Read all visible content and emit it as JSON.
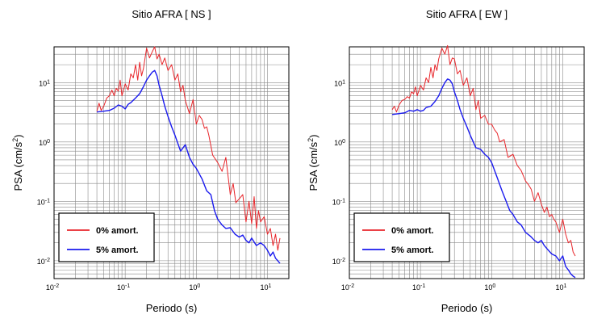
{
  "chart_data": [
    {
      "type": "line",
      "title": "Sitio AFRA [ NS ]",
      "xlabel": "Periodo (s)",
      "ylabel_main": "PSA (cm/s",
      "ylabel_sup": "2",
      "ylabel_close": ")",
      "x_scale": "log",
      "y_scale": "log",
      "xlim": [
        0.01,
        20
      ],
      "ylim": [
        0.005,
        40
      ],
      "grid": true,
      "legend_position": "bottom-left",
      "x_ticks": [
        {
          "base": "10",
          "exp": "-2",
          "v": 0.01
        },
        {
          "base": "10",
          "exp": "-1",
          "v": 0.1
        },
        {
          "base": "10",
          "exp": "0",
          "v": 1
        },
        {
          "base": "10",
          "exp": "1",
          "v": 10
        }
      ],
      "y_ticks": [
        {
          "base": "10",
          "exp": "-2",
          "v": 0.01
        },
        {
          "base": "10",
          "exp": "-1",
          "v": 0.1
        },
        {
          "base": "10",
          "exp": "0",
          "v": 1
        },
        {
          "base": "10",
          "exp": "1",
          "v": 10
        }
      ],
      "series": [
        {
          "name": "0% amort.",
          "color": "#e8262b",
          "x": [
            0.04,
            0.043,
            0.046,
            0.05,
            0.055,
            0.06,
            0.065,
            0.07,
            0.075,
            0.08,
            0.085,
            0.09,
            0.1,
            0.11,
            0.12,
            0.13,
            0.14,
            0.15,
            0.16,
            0.17,
            0.18,
            0.2,
            0.22,
            0.24,
            0.26,
            0.28,
            0.3,
            0.33,
            0.36,
            0.4,
            0.45,
            0.5,
            0.55,
            0.6,
            0.65,
            0.7,
            0.8,
            0.9,
            1.0,
            1.1,
            1.2,
            1.3,
            1.4,
            1.5,
            1.7,
            2.0,
            2.3,
            2.6,
            3.0,
            3.3,
            3.6,
            4.0,
            4.5,
            5.0,
            5.5,
            6.0,
            6.5,
            7.0,
            7.5,
            8.0,
            9.0,
            10,
            11,
            12,
            13,
            14,
            15
          ],
          "y": [
            3.3,
            4.5,
            3.4,
            4.0,
            5.5,
            6.0,
            7.5,
            6.0,
            8.0,
            7.2,
            11,
            6.0,
            9.5,
            7.5,
            14,
            12,
            20,
            11,
            22,
            13,
            17,
            38,
            26,
            33,
            40,
            25,
            30,
            20,
            26,
            16,
            20,
            11,
            14,
            7,
            9,
            5,
            3.0,
            5.2,
            2.0,
            2.8,
            2.4,
            1.7,
            1.8,
            1.3,
            0.6,
            0.45,
            0.32,
            0.55,
            0.13,
            0.2,
            0.095,
            0.11,
            0.13,
            0.045,
            0.1,
            0.042,
            0.12,
            0.035,
            0.07,
            0.045,
            0.055,
            0.028,
            0.035,
            0.018,
            0.028,
            0.015,
            0.024
          ]
        },
        {
          "name": "5% amort.",
          "color": "#1a1aee",
          "x": [
            0.04,
            0.05,
            0.06,
            0.07,
            0.08,
            0.09,
            0.1,
            0.11,
            0.12,
            0.14,
            0.16,
            0.18,
            0.2,
            0.22,
            0.24,
            0.26,
            0.28,
            0.3,
            0.33,
            0.36,
            0.4,
            0.45,
            0.5,
            0.6,
            0.7,
            0.8,
            0.9,
            1.0,
            1.2,
            1.4,
            1.6,
            1.8,
            2.0,
            2.3,
            2.6,
            3.0,
            3.5,
            4.0,
            4.5,
            5.0,
            5.5,
            6.0,
            7.0,
            8.0,
            9.0,
            10,
            11,
            12,
            13,
            14,
            15
          ],
          "y": [
            3.2,
            3.3,
            3.4,
            3.7,
            4.2,
            4.0,
            3.6,
            4.3,
            4.6,
            5.5,
            6.5,
            8.5,
            11,
            13,
            15,
            16,
            13,
            9,
            6,
            4,
            2.7,
            1.8,
            1.3,
            0.7,
            0.9,
            0.55,
            0.42,
            0.36,
            0.24,
            0.15,
            0.13,
            0.07,
            0.05,
            0.04,
            0.035,
            0.036,
            0.028,
            0.025,
            0.027,
            0.022,
            0.02,
            0.024,
            0.018,
            0.02,
            0.018,
            0.015,
            0.012,
            0.014,
            0.011,
            0.01,
            0.009
          ]
        }
      ]
    },
    {
      "type": "line",
      "title": "Sitio AFRA [ EW ]",
      "xlabel": "Periodo (s)",
      "ylabel_main": "PSA (cm/s",
      "ylabel_sup": "2",
      "ylabel_close": ")",
      "x_scale": "log",
      "y_scale": "log",
      "xlim": [
        0.01,
        20
      ],
      "ylim": [
        0.005,
        40
      ],
      "grid": true,
      "legend_position": "bottom-left",
      "x_ticks": [
        {
          "base": "10",
          "exp": "-2",
          "v": 0.01
        },
        {
          "base": "10",
          "exp": "-1",
          "v": 0.1
        },
        {
          "base": "10",
          "exp": "0",
          "v": 1
        },
        {
          "base": "10",
          "exp": "1",
          "v": 10
        }
      ],
      "y_ticks": [
        {
          "base": "10",
          "exp": "-2",
          "v": 0.01
        },
        {
          "base": "10",
          "exp": "-1",
          "v": 0.1
        },
        {
          "base": "10",
          "exp": "0",
          "v": 1
        },
        {
          "base": "10",
          "exp": "1",
          "v": 10
        }
      ],
      "series": [
        {
          "name": "0% amort.",
          "color": "#e8262b",
          "x": [
            0.04,
            0.043,
            0.046,
            0.05,
            0.055,
            0.06,
            0.065,
            0.07,
            0.075,
            0.08,
            0.085,
            0.09,
            0.1,
            0.11,
            0.12,
            0.13,
            0.14,
            0.15,
            0.16,
            0.17,
            0.18,
            0.2,
            0.22,
            0.24,
            0.26,
            0.28,
            0.3,
            0.33,
            0.36,
            0.4,
            0.45,
            0.5,
            0.55,
            0.6,
            0.65,
            0.7,
            0.8,
            0.9,
            1.0,
            1.1,
            1.2,
            1.3,
            1.5,
            1.7,
            2.0,
            2.3,
            2.6,
            3.0,
            3.3,
            3.6,
            4.0,
            4.5,
            5.0,
            5.5,
            6.0,
            6.5,
            7.0,
            7.5,
            8.0,
            9.0,
            10,
            11,
            12,
            13,
            14,
            15
          ],
          "y": [
            3.5,
            4.0,
            3.2,
            4.2,
            5.0,
            5.2,
            5.8,
            5.5,
            7.0,
            6.5,
            8.5,
            6.0,
            9.0,
            7.5,
            12,
            10,
            18,
            12,
            20,
            16,
            25,
            38,
            30,
            42,
            20,
            26,
            25,
            14,
            16,
            9,
            12,
            6,
            8,
            3.5,
            5,
            2.5,
            2.8,
            2.0,
            2.0,
            1.6,
            1.4,
            1.0,
            1.1,
            0.55,
            0.62,
            0.4,
            0.33,
            0.22,
            0.19,
            0.16,
            0.1,
            0.14,
            0.09,
            0.065,
            0.08,
            0.055,
            0.06,
            0.05,
            0.045,
            0.03,
            0.05,
            0.028,
            0.02,
            0.022,
            0.014,
            0.012
          ]
        },
        {
          "name": "5% amort.",
          "color": "#1a1aee",
          "x": [
            0.04,
            0.05,
            0.06,
            0.07,
            0.08,
            0.09,
            0.1,
            0.11,
            0.12,
            0.14,
            0.16,
            0.18,
            0.2,
            0.22,
            0.24,
            0.26,
            0.28,
            0.3,
            0.33,
            0.36,
            0.4,
            0.45,
            0.5,
            0.6,
            0.7,
            0.8,
            0.9,
            1.0,
            1.2,
            1.4,
            1.6,
            1.8,
            2.0,
            2.3,
            2.6,
            3.0,
            3.5,
            4.0,
            4.5,
            5.0,
            5.5,
            6.0,
            7.0,
            8.0,
            9.0,
            10,
            11,
            12,
            13,
            14,
            15
          ],
          "y": [
            2.9,
            3.0,
            3.1,
            3.4,
            3.3,
            3.5,
            3.3,
            3.4,
            3.8,
            4.0,
            4.8,
            6.0,
            8.0,
            10,
            11.5,
            11,
            9.5,
            7,
            5,
            3.5,
            2.5,
            1.8,
            1.3,
            0.8,
            0.75,
            0.62,
            0.55,
            0.45,
            0.25,
            0.15,
            0.1,
            0.07,
            0.06,
            0.045,
            0.04,
            0.03,
            0.026,
            0.022,
            0.02,
            0.022,
            0.018,
            0.016,
            0.013,
            0.012,
            0.01,
            0.012,
            0.008,
            0.007,
            0.006,
            0.0055,
            0.0052
          ]
        }
      ]
    }
  ]
}
